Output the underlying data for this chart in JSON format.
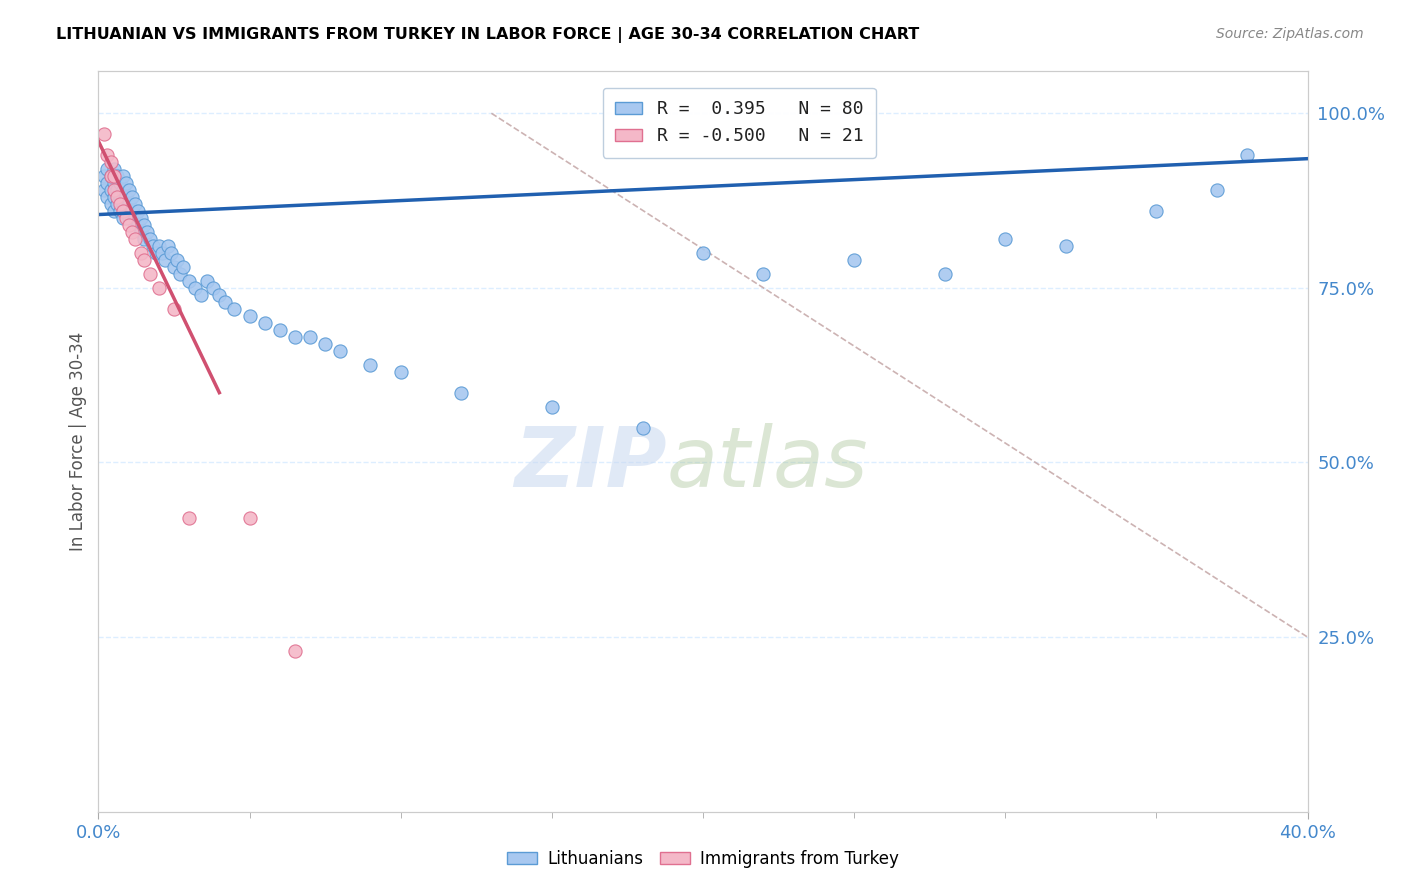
{
  "title": "LITHUANIAN VS IMMIGRANTS FROM TURKEY IN LABOR FORCE | AGE 30-34 CORRELATION CHART",
  "source": "Source: ZipAtlas.com",
  "ylabel": "In Labor Force | Age 30-34",
  "xlim": [
    0.0,
    0.4
  ],
  "ylim": [
    0.0,
    1.06
  ],
  "xtick_positions": [
    0.0,
    0.4
  ],
  "xtick_labels": [
    "0.0%",
    "40.0%"
  ],
  "yticks_right": [
    0.25,
    0.5,
    0.75,
    1.0
  ],
  "ytick_labels_right": [
    "25.0%",
    "50.0%",
    "75.0%",
    "100.0%"
  ],
  "blue_R": 0.395,
  "blue_N": 80,
  "pink_R": -0.5,
  "pink_N": 21,
  "blue_color": "#A8C8F0",
  "blue_edge_color": "#5B9BD5",
  "pink_color": "#F4B8C8",
  "pink_edge_color": "#E07090",
  "trend_blue_color": "#2060B0",
  "trend_pink_color": "#D05070",
  "ref_line_color": "#C0A0A0",
  "background_color": "#FFFFFF",
  "grid_color": "#DDEEFF",
  "axis_color": "#4488CC",
  "title_color": "#000000",
  "watermark_zip": "ZIP",
  "watermark_atlas": "atlas",
  "blue_x": [
    0.002,
    0.002,
    0.003,
    0.003,
    0.003,
    0.004,
    0.004,
    0.004,
    0.005,
    0.005,
    0.005,
    0.005,
    0.006,
    0.006,
    0.006,
    0.007,
    0.007,
    0.007,
    0.008,
    0.008,
    0.008,
    0.008,
    0.009,
    0.009,
    0.009,
    0.01,
    0.01,
    0.01,
    0.011,
    0.011,
    0.012,
    0.012,
    0.013,
    0.013,
    0.014,
    0.014,
    0.015,
    0.015,
    0.016,
    0.017,
    0.018,
    0.019,
    0.02,
    0.021,
    0.022,
    0.023,
    0.024,
    0.025,
    0.026,
    0.027,
    0.028,
    0.03,
    0.032,
    0.034,
    0.036,
    0.038,
    0.04,
    0.042,
    0.045,
    0.05,
    0.055,
    0.06,
    0.065,
    0.07,
    0.075,
    0.08,
    0.09,
    0.1,
    0.12,
    0.15,
    0.18,
    0.2,
    0.22,
    0.25,
    0.28,
    0.3,
    0.32,
    0.35,
    0.37,
    0.38
  ],
  "blue_y": [
    0.89,
    0.91,
    0.9,
    0.92,
    0.88,
    0.91,
    0.89,
    0.87,
    0.9,
    0.88,
    0.92,
    0.86,
    0.89,
    0.87,
    0.91,
    0.88,
    0.86,
    0.9,
    0.87,
    0.89,
    0.85,
    0.91,
    0.88,
    0.86,
    0.9,
    0.87,
    0.89,
    0.85,
    0.88,
    0.86,
    0.87,
    0.85,
    0.86,
    0.84,
    0.85,
    0.83,
    0.84,
    0.82,
    0.83,
    0.82,
    0.81,
    0.8,
    0.81,
    0.8,
    0.79,
    0.81,
    0.8,
    0.78,
    0.79,
    0.77,
    0.78,
    0.76,
    0.75,
    0.74,
    0.76,
    0.75,
    0.74,
    0.73,
    0.72,
    0.71,
    0.7,
    0.69,
    0.68,
    0.68,
    0.67,
    0.66,
    0.64,
    0.63,
    0.6,
    0.58,
    0.55,
    0.8,
    0.77,
    0.79,
    0.77,
    0.82,
    0.81,
    0.86,
    0.89,
    0.94
  ],
  "pink_x": [
    0.002,
    0.003,
    0.004,
    0.004,
    0.005,
    0.005,
    0.006,
    0.007,
    0.008,
    0.009,
    0.01,
    0.011,
    0.012,
    0.014,
    0.015,
    0.017,
    0.02,
    0.025,
    0.03,
    0.05,
    0.065
  ],
  "pink_y": [
    0.97,
    0.94,
    0.93,
    0.91,
    0.91,
    0.89,
    0.88,
    0.87,
    0.86,
    0.85,
    0.84,
    0.83,
    0.82,
    0.8,
    0.79,
    0.77,
    0.75,
    0.72,
    0.42,
    0.42,
    0.23
  ],
  "trend_blue_x0": 0.0,
  "trend_blue_x1": 0.4,
  "trend_blue_y0": 0.855,
  "trend_blue_y1": 0.935,
  "trend_pink_x0": 0.0,
  "trend_pink_x1": 0.04,
  "trend_pink_y0": 0.96,
  "trend_pink_y1": 0.6,
  "ref_line_x0": 0.13,
  "ref_line_x1": 0.4,
  "ref_line_y0": 1.0,
  "ref_line_y1": 0.25
}
